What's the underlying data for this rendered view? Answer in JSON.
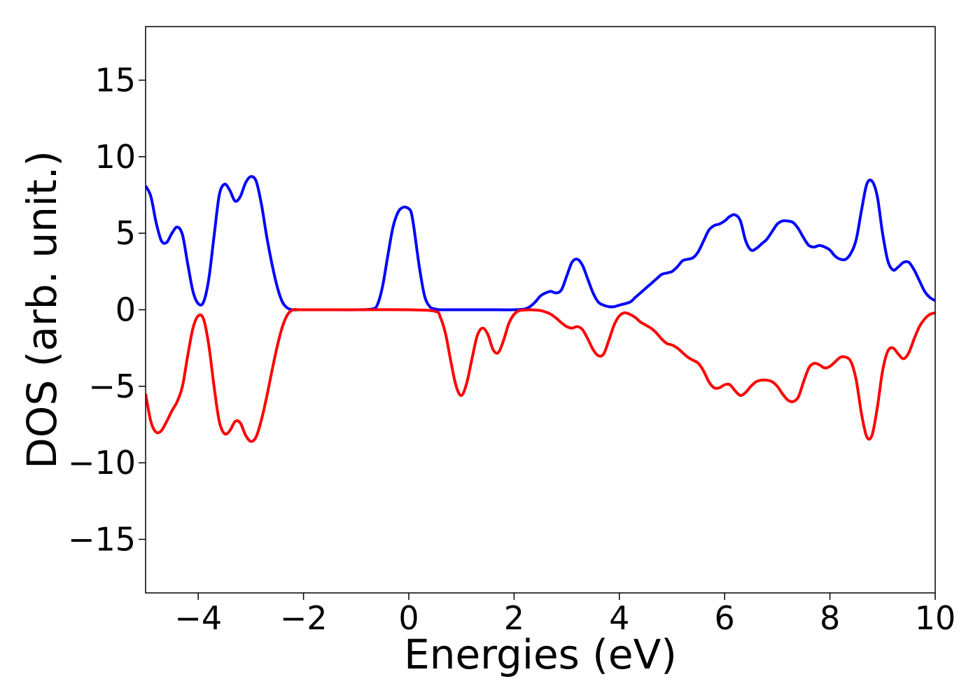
{
  "chart_data": {
    "type": "line",
    "title": "",
    "xlabel": "Energies (eV)",
    "ylabel": "DOS (arb. unit.)",
    "xlim": [
      -5,
      10
    ],
    "ylim": [
      -18.5,
      18.5
    ],
    "grid": false,
    "legend": "none",
    "x_ticks": [
      -4,
      -2,
      0,
      2,
      4,
      6,
      8,
      10
    ],
    "x_tick_labels": [
      "−4",
      "−2",
      "0",
      "2",
      "4",
      "6",
      "8",
      "10"
    ],
    "y_ticks": [
      15,
      10,
      5,
      0,
      -5,
      -10,
      -15
    ],
    "y_tick_labels": [
      "15",
      "10",
      "5",
      "0",
      "−5",
      "−10",
      "−15"
    ],
    "series": [
      {
        "color": "#0000ff",
        "x": [
          -5.0,
          -4.9,
          -4.8,
          -4.7,
          -4.6,
          -4.5,
          -4.4,
          -4.3,
          -4.2,
          -4.1,
          -4.0,
          -3.9,
          -3.8,
          -3.7,
          -3.6,
          -3.5,
          -3.4,
          -3.3,
          -3.2,
          -3.1,
          -3.0,
          -2.9,
          -2.8,
          -2.7,
          -2.6,
          -2.5,
          -2.4,
          -2.3,
          -2.2,
          -2.1,
          -2.0,
          -1.5,
          -1.0,
          -0.7,
          -0.6,
          -0.5,
          -0.4,
          -0.3,
          -0.2,
          -0.1,
          0.0,
          0.05,
          0.1,
          0.2,
          0.3,
          0.4,
          0.5,
          0.6,
          0.7,
          1.0,
          1.5,
          2.0,
          2.2,
          2.3,
          2.4,
          2.5,
          2.6,
          2.7,
          2.8,
          2.9,
          3.0,
          3.1,
          3.2,
          3.3,
          3.4,
          3.5,
          3.6,
          3.7,
          3.8,
          3.9,
          4.0,
          4.2,
          4.3,
          4.4,
          4.5,
          4.6,
          4.7,
          4.8,
          4.9,
          5.0,
          5.1,
          5.2,
          5.3,
          5.4,
          5.5,
          5.6,
          5.7,
          5.8,
          5.9,
          6.0,
          6.1,
          6.2,
          6.3,
          6.4,
          6.5,
          6.6,
          6.7,
          6.8,
          6.9,
          7.0,
          7.1,
          7.2,
          7.3,
          7.4,
          7.5,
          7.6,
          7.7,
          7.8,
          7.9,
          8.0,
          8.1,
          8.2,
          8.3,
          8.4,
          8.5,
          8.6,
          8.7,
          8.8,
          8.9,
          9.0,
          9.1,
          9.2,
          9.3,
          9.4,
          9.5,
          9.6,
          9.7,
          9.8,
          9.9,
          10.0
        ],
        "y": [
          8.1,
          7.4,
          5.7,
          4.5,
          4.4,
          5.0,
          5.4,
          4.9,
          3.0,
          1.2,
          0.4,
          0.5,
          2.0,
          4.8,
          7.5,
          8.2,
          7.8,
          7.1,
          7.4,
          8.3,
          8.7,
          8.4,
          6.9,
          4.8,
          3.0,
          1.5,
          0.5,
          0.1,
          0.0,
          0.0,
          0.0,
          0.0,
          0.0,
          0.05,
          0.3,
          1.5,
          3.5,
          5.4,
          6.4,
          6.7,
          6.6,
          6.3,
          5.3,
          2.8,
          0.9,
          0.2,
          0.05,
          0.0,
          0.0,
          0.0,
          0.0,
          0.0,
          0.05,
          0.2,
          0.5,
          0.9,
          1.1,
          1.2,
          1.1,
          1.3,
          2.2,
          3.1,
          3.3,
          2.9,
          2.0,
          1.1,
          0.5,
          0.3,
          0.2,
          0.2,
          0.3,
          0.5,
          0.8,
          1.1,
          1.4,
          1.7,
          2.0,
          2.3,
          2.4,
          2.5,
          2.8,
          3.2,
          3.3,
          3.4,
          3.8,
          4.5,
          5.2,
          5.5,
          5.6,
          5.8,
          6.1,
          6.2,
          5.8,
          4.5,
          3.9,
          4.0,
          4.3,
          4.6,
          5.1,
          5.6,
          5.8,
          5.8,
          5.7,
          5.3,
          4.7,
          4.2,
          4.1,
          4.2,
          4.1,
          3.9,
          3.5,
          3.3,
          3.3,
          3.7,
          4.6,
          6.5,
          8.2,
          8.4,
          7.4,
          5.0,
          3.2,
          2.6,
          2.8,
          3.1,
          3.1,
          2.6,
          1.9,
          1.2,
          0.8,
          0.6
        ]
      },
      {
        "color": "#ff0000",
        "x": [
          -5.0,
          -4.9,
          -4.8,
          -4.7,
          -4.6,
          -4.5,
          -4.4,
          -4.3,
          -4.2,
          -4.1,
          -4.0,
          -3.9,
          -3.8,
          -3.7,
          -3.6,
          -3.5,
          -3.4,
          -3.3,
          -3.2,
          -3.1,
          -3.0,
          -2.9,
          -2.8,
          -2.7,
          -2.6,
          -2.5,
          -2.4,
          -2.3,
          -2.2,
          -2.1,
          -2.0,
          -1.0,
          0.0,
          0.5,
          0.6,
          0.7,
          0.8,
          0.9,
          1.0,
          1.1,
          1.2,
          1.3,
          1.4,
          1.5,
          1.6,
          1.7,
          1.8,
          1.9,
          2.0,
          2.1,
          2.2,
          2.3,
          2.4,
          2.5,
          2.6,
          2.7,
          2.8,
          2.9,
          3.0,
          3.1,
          3.2,
          3.3,
          3.4,
          3.5,
          3.6,
          3.7,
          3.8,
          3.9,
          4.0,
          4.1,
          4.2,
          4.3,
          4.4,
          4.5,
          4.6,
          4.7,
          4.8,
          4.9,
          5.0,
          5.1,
          5.2,
          5.3,
          5.4,
          5.5,
          5.6,
          5.7,
          5.8,
          5.9,
          6.0,
          6.1,
          6.2,
          6.3,
          6.4,
          6.5,
          6.6,
          6.7,
          6.8,
          6.9,
          7.0,
          7.1,
          7.2,
          7.3,
          7.4,
          7.5,
          7.6,
          7.7,
          7.8,
          7.9,
          8.0,
          8.1,
          8.2,
          8.3,
          8.4,
          8.5,
          8.6,
          8.7,
          8.8,
          8.9,
          9.0,
          9.1,
          9.2,
          9.3,
          9.4,
          9.5,
          9.6,
          9.7,
          9.8,
          9.9,
          10.0
        ],
        "y": [
          -5.5,
          -7.3,
          -8.0,
          -7.9,
          -7.3,
          -6.6,
          -6.0,
          -5.0,
          -3.0,
          -1.2,
          -0.4,
          -0.6,
          -2.3,
          -5.0,
          -7.3,
          -8.1,
          -7.9,
          -7.3,
          -7.4,
          -8.2,
          -8.6,
          -8.3,
          -7.2,
          -5.7,
          -4.0,
          -2.4,
          -1.1,
          -0.3,
          0.0,
          0.0,
          0.0,
          0.0,
          0.0,
          -0.1,
          -0.5,
          -1.6,
          -3.4,
          -5.0,
          -5.6,
          -4.8,
          -3.2,
          -1.7,
          -1.2,
          -1.6,
          -2.6,
          -2.8,
          -2.0,
          -0.9,
          -0.3,
          -0.05,
          -0.02,
          0.0,
          -0.02,
          -0.05,
          -0.15,
          -0.3,
          -0.55,
          -0.85,
          -1.1,
          -1.2,
          -1.1,
          -1.3,
          -1.9,
          -2.6,
          -3.0,
          -2.9,
          -2.0,
          -1.0,
          -0.4,
          -0.2,
          -0.3,
          -0.5,
          -0.8,
          -1.0,
          -1.2,
          -1.5,
          -1.9,
          -2.2,
          -2.3,
          -2.5,
          -2.8,
          -3.1,
          -3.3,
          -3.5,
          -4.0,
          -4.7,
          -5.1,
          -5.1,
          -4.9,
          -4.9,
          -5.3,
          -5.6,
          -5.4,
          -5.0,
          -4.7,
          -4.6,
          -4.6,
          -4.7,
          -5.0,
          -5.5,
          -5.9,
          -6.0,
          -5.7,
          -4.7,
          -3.8,
          -3.5,
          -3.6,
          -3.8,
          -3.7,
          -3.4,
          -3.1,
          -3.1,
          -3.4,
          -4.6,
          -6.8,
          -8.3,
          -8.2,
          -6.4,
          -4.0,
          -2.7,
          -2.5,
          -2.9,
          -3.2,
          -2.8,
          -1.9,
          -1.1,
          -0.6,
          -0.3,
          -0.2
        ]
      }
    ]
  }
}
